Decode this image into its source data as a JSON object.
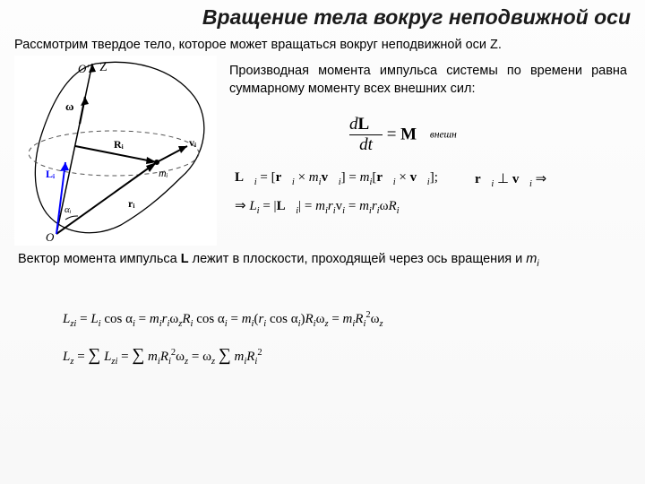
{
  "title": "Вращение тела вокруг неподвижной оси",
  "intro": "Рассмотрим твердое тело, которое может вращаться вокруг неподвижной оси Z.",
  "para1": "Производная момента импульса системы по времени равна суммарному моменту всех внешних сил:",
  "para2_a": "Вектор момента импульса ",
  "para2_L": "L",
  "para2_b": " лежит в плоскости, проходящей через ось вращения и ",
  "para2_m": "m",
  "para2_i": "i",
  "eq_main_html": "<span style='display:inline-block;text-align:center;vertical-align:middle'><span style='display:block'><i>d</i><b>L&#8407;</b></span><span style='display:block;border-top:1.5px solid #000;padding:0 3px'><i>dt</i></span></span> <span style='vertical-align:middle'>= <b>M&#8407;</b></span><sub style='font-size:60%;vertical-align:middle'><i>внешн</i></sub>",
  "eq_Li_html": "<b>L&#8407;</b><sub><i>i</i></sub> = [<b>r&#8407;</b><sub><i>i</i></sub> × <i>m</i><sub><i>i</i></sub><b>v&#8407;</b><sub><i>i</i></sub>] = <i>m</i><sub><i>i</i></sub>[<b>r&#8407;</b><sub><i>i</i></sub> × <b>v&#8407;</b><sub><i>i</i></sub>];",
  "eq_perp_html": "<b>r&#8407;</b><sub><i>i</i></sub> ⊥ <b>v&#8407;</b><sub><i>i</i></sub> ⇒",
  "eq_Li2_html": "⇒ <i>L</i><sub><i>i</i></sub> = |<b>L&#8407;</b><sub><i>i</i></sub>| = <i>m</i><sub><i>i</i></sub><i>r</i><sub><i>i</i></sub>v<sub><i>i</i></sub> = <i>m</i><sub><i>i</i></sub><i>r</i><sub><i>i</i></sub>ω<i>R</i><sub><i>i</i></sub>",
  "eq_Lzi_html": "<i>L</i><sub><i>zi</i></sub> = <i>L</i><sub><i>i</i></sub> cos α<sub><i>i</i></sub> = <i>m</i><sub><i>i</i></sub><i>r</i><sub><i>i</i></sub>ω<sub><i>z</i></sub><i>R</i><sub><i>i</i></sub> cos α<sub><i>i</i></sub> = <i>m</i><sub><i>i</i></sub>(<i>r</i><sub><i>i</i></sub> cos α<sub><i>i</i></sub>)<i>R</i><sub><i>i</i></sub>ω<sub><i>z</i></sub> = <i>m</i><sub><i>i</i></sub><i>R</i><sub><i>i</i></sub><sup>2</sup>ω<sub><i>z</i></sub>",
  "eq_Lz_html": "<i>L</i><sub><i>z</i></sub> = <span style='font-size:130%'>∑</span> <i>L</i><sub><i>zi</i></sub> = <span style='font-size:130%'>∑</span> <i>m</i><sub><i>i</i></sub><i>R</i><sub><i>i</i></sub><sup>2</sup>ω<sub><i>z</i></sub> = ω<sub><i>z</i></sub> <span style='font-size:130%'>∑</span> <i>m</i><sub><i>i</i></sub><i>R</i><sub><i>i</i></sub><sup>2</sup>",
  "fig": {
    "labels": {
      "Z": "Z",
      "Oprime": "O′",
      "O": "O",
      "omega": "ω",
      "Ri": "Rᵢ",
      "ri": "rᵢ",
      "mi": "mᵢ",
      "vi": "vᵢ",
      "Li": "Lᵢ",
      "alpha": "αᵢ"
    },
    "colors": {
      "body": "#000000",
      "axis": "#000000",
      "Li": "#0000ff",
      "dash": "#555555",
      "bg": "#ffffff"
    }
  }
}
